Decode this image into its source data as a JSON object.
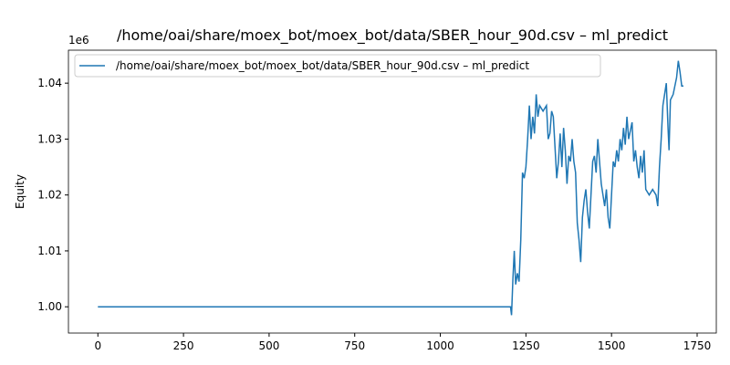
{
  "chart_data": {
    "type": "line",
    "title": "/home/oai/share/moex_bot/moex_bot/data/SBER_hour_90d.csv – ml_predict",
    "y_label": "Equity",
    "y_offset_label": "1e6",
    "x": [
      0,
      1205,
      1208,
      1212,
      1216,
      1220,
      1225,
      1230,
      1235,
      1240,
      1245,
      1250,
      1255,
      1260,
      1265,
      1270,
      1275,
      1280,
      1285,
      1290,
      1300,
      1310,
      1315,
      1320,
      1325,
      1330,
      1340,
      1345,
      1350,
      1355,
      1360,
      1365,
      1370,
      1375,
      1380,
      1385,
      1390,
      1395,
      1400,
      1405,
      1410,
      1415,
      1420,
      1425,
      1430,
      1435,
      1440,
      1445,
      1450,
      1455,
      1460,
      1465,
      1470,
      1475,
      1480,
      1485,
      1490,
      1495,
      1500,
      1505,
      1510,
      1515,
      1520,
      1525,
      1530,
      1535,
      1540,
      1545,
      1550,
      1560,
      1565,
      1570,
      1575,
      1580,
      1585,
      1590,
      1595,
      1600,
      1610,
      1620,
      1630,
      1635,
      1640,
      1645,
      1650,
      1655,
      1660,
      1665,
      1668,
      1672,
      1680,
      1690,
      1695,
      1700,
      1705,
      1710
    ],
    "series": [
      {
        "name": "/home/oai/share/moex_bot/moex_bot/data/SBER_hour_90d.csv – ml_predict",
        "color": "#1f77b4",
        "values": [
          1.0,
          1.0,
          0.9985,
          1.005,
          1.01,
          1.004,
          1.006,
          1.0045,
          1.012,
          1.024,
          1.023,
          1.025,
          1.03,
          1.036,
          1.03,
          1.034,
          1.031,
          1.038,
          1.034,
          1.036,
          1.035,
          1.036,
          1.03,
          1.031,
          1.035,
          1.034,
          1.023,
          1.026,
          1.031,
          1.025,
          1.032,
          1.028,
          1.022,
          1.027,
          1.026,
          1.03,
          1.026,
          1.024,
          1.015,
          1.012,
          1.008,
          1.016,
          1.019,
          1.021,
          1.017,
          1.014,
          1.02,
          1.026,
          1.027,
          1.024,
          1.03,
          1.026,
          1.022,
          1.02,
          1.018,
          1.021,
          1.016,
          1.014,
          1.02,
          1.026,
          1.025,
          1.028,
          1.026,
          1.03,
          1.028,
          1.032,
          1.029,
          1.034,
          1.03,
          1.033,
          1.026,
          1.028,
          1.025,
          1.023,
          1.027,
          1.024,
          1.028,
          1.021,
          1.02,
          1.021,
          1.02,
          1.018,
          1.025,
          1.03,
          1.036,
          1.038,
          1.04,
          1.032,
          1.028,
          1.037,
          1.038,
          1.041,
          1.044,
          1.042,
          1.0395,
          1.0395
        ]
      }
    ],
    "xlim": [
      -86,
      1806
    ],
    "xticks": [
      0,
      250,
      500,
      750,
      1000,
      1250,
      1500,
      1750
    ],
    "ylim": [
      0.9953,
      1.0459
    ],
    "yticks": [
      {
        "value": 1.0,
        "label": "1.00"
      },
      {
        "value": 1.01,
        "label": "1.01"
      },
      {
        "value": 1.02,
        "label": "1.02"
      },
      {
        "value": 1.03,
        "label": "1.03"
      },
      {
        "value": 1.04,
        "label": "1.04"
      }
    ],
    "legend": "upper left"
  }
}
